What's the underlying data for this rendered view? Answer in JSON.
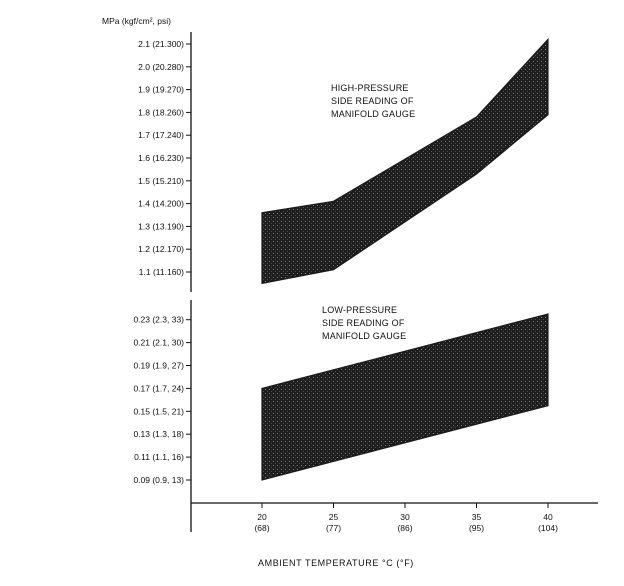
{
  "chart_data": [
    {
      "type": "area",
      "name": "high-pressure",
      "ylabel": "MPa (kgf/cm², psi)",
      "yticks": [
        {
          "value": 2.1,
          "label": "2.1 (21.300)"
        },
        {
          "value": 2.0,
          "label": "2.0 (20.280)"
        },
        {
          "value": 1.9,
          "label": "1.9 (19.270)"
        },
        {
          "value": 1.8,
          "label": "1.8 (18.260)"
        },
        {
          "value": 1.7,
          "label": "1.7 (17.240)"
        },
        {
          "value": 1.6,
          "label": "1.6 (16.230)"
        },
        {
          "value": 1.5,
          "label": "1.5 (15.210)"
        },
        {
          "value": 1.4,
          "label": "1.4 (14.200)"
        },
        {
          "value": 1.3,
          "label": "1.3 (13.190)"
        },
        {
          "value": 1.2,
          "label": "1.2 (12.170)"
        },
        {
          "value": 1.1,
          "label": "1.1 (11.160)"
        }
      ],
      "x": [
        20,
        25,
        35,
        40
      ],
      "upper": [
        1.36,
        1.41,
        1.78,
        2.12
      ],
      "lower": [
        1.05,
        1.11,
        1.53,
        1.79
      ],
      "annotation": [
        "HIGH-PRESSURE",
        "SIDE READING OF",
        "MANIFOLD GAUGE"
      ],
      "color": "#1a1a1a"
    },
    {
      "type": "area",
      "name": "low-pressure",
      "yticks": [
        {
          "value": 0.23,
          "label": "0.23 (2.3, 33)"
        },
        {
          "value": 0.21,
          "label": "0.21 (2.1, 30)"
        },
        {
          "value": 0.19,
          "label": "0.19 (1.9, 27)"
        },
        {
          "value": 0.17,
          "label": "0.17 (1.7, 24)"
        },
        {
          "value": 0.15,
          "label": "0.15 (1.5, 21)"
        },
        {
          "value": 0.13,
          "label": "0.13 (1.3, 18)"
        },
        {
          "value": 0.11,
          "label": "0.11 (1.1, 16)"
        },
        {
          "value": 0.09,
          "label": "0.09 (0.9, 13)"
        }
      ],
      "x": [
        20,
        40
      ],
      "upper": [
        0.17,
        0.235
      ],
      "lower": [
        0.09,
        0.155
      ],
      "annotation": [
        "LOW-PRESSURE",
        "SIDE READING OF",
        "MANIFOLD GAUGE"
      ],
      "color": "#1a1a1a"
    }
  ],
  "x_axis": {
    "ticks": [
      {
        "value": 20,
        "label": "20",
        "sub": "(68)"
      },
      {
        "value": 25,
        "label": "25",
        "sub": "(77)"
      },
      {
        "value": 30,
        "label": "30",
        "sub": "(86)"
      },
      {
        "value": 35,
        "label": "35",
        "sub": "(95)"
      },
      {
        "value": 40,
        "label": "40",
        "sub": "(104)"
      }
    ],
    "label": "AMBIENT TEMPERATURE    °C (°F)"
  }
}
